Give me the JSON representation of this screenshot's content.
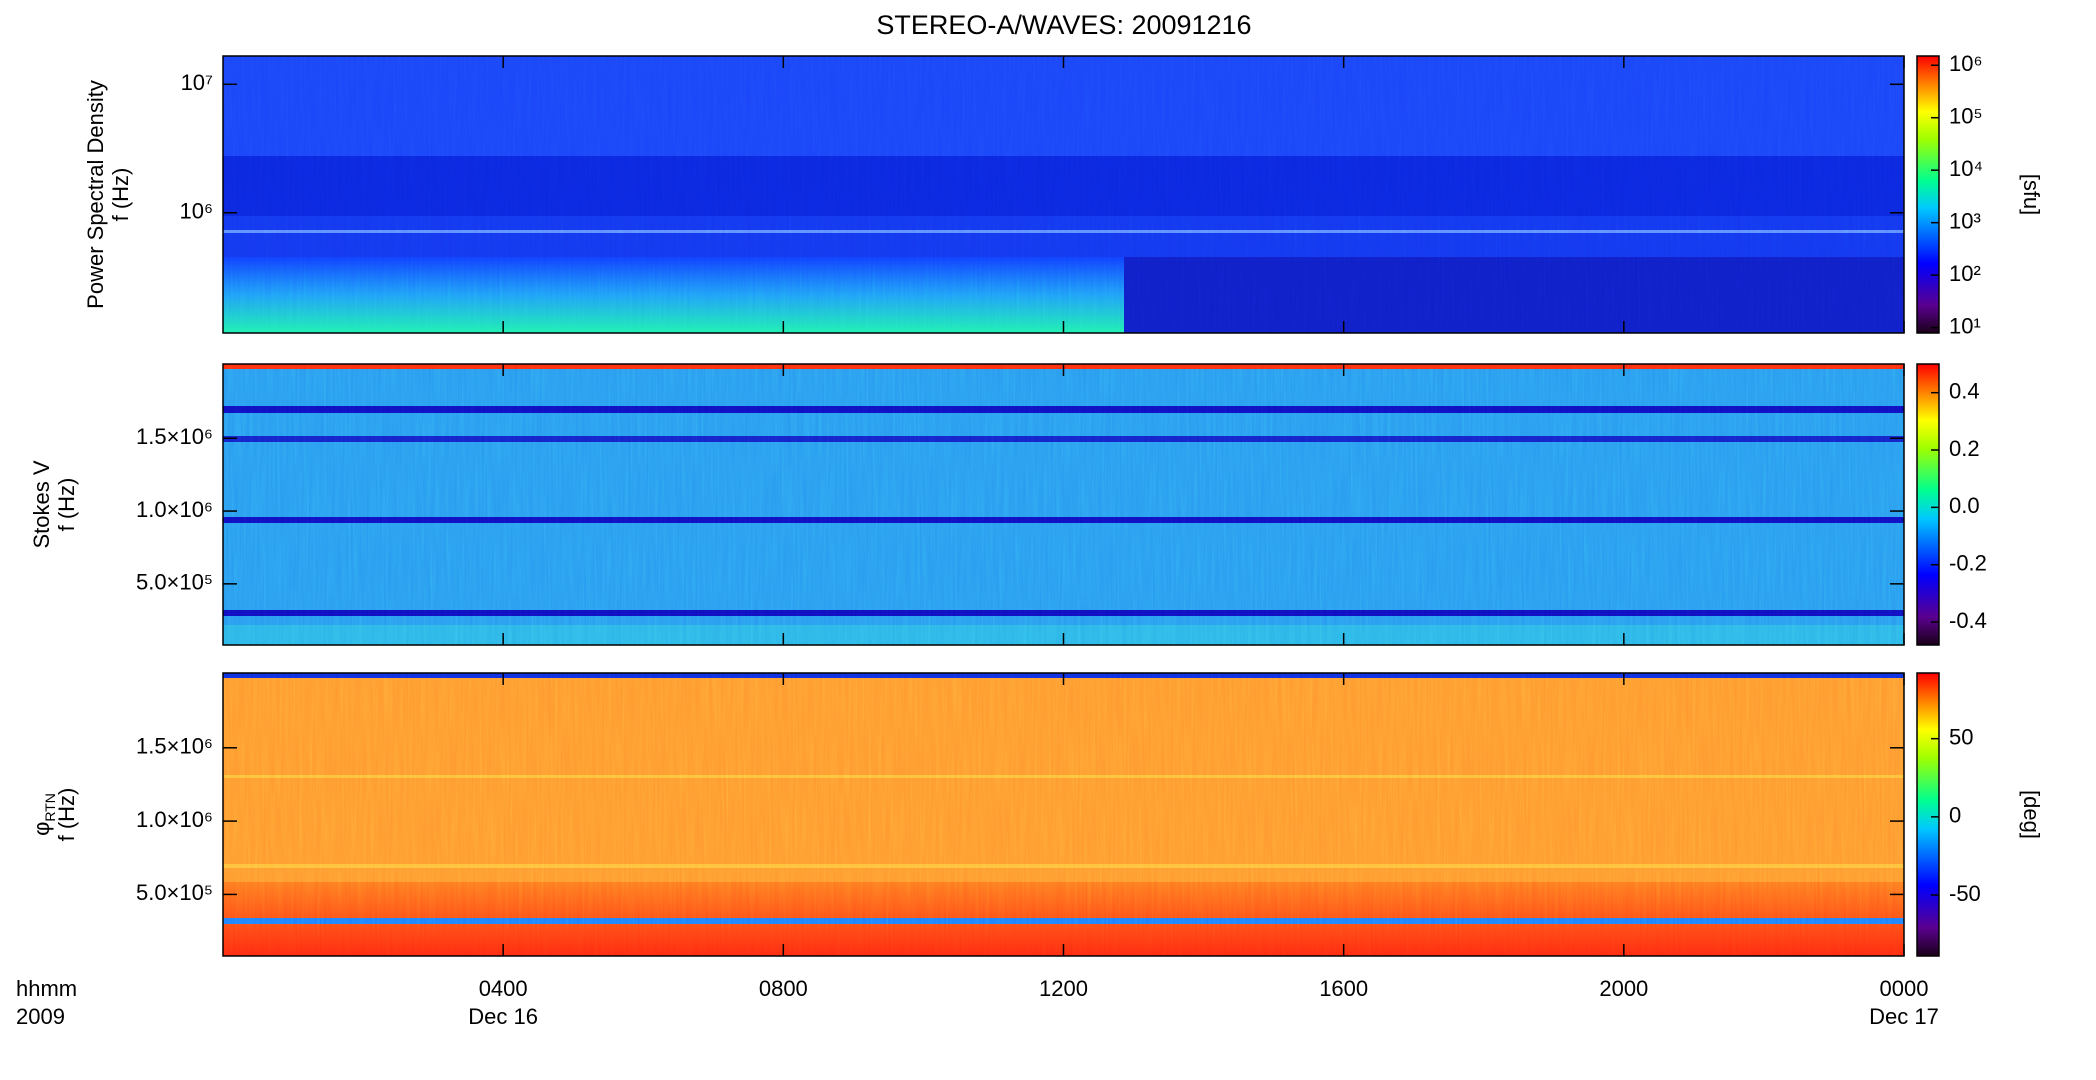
{
  "chart_data": [
    {
      "type": "spectrogram",
      "title": "STEREO-A/WAVES: 20091216",
      "ylabel": [
        "Power Spectral Density",
        "f (Hz)"
      ],
      "yscale": "log",
      "ylim": [
        116000,
        16600000
      ],
      "yticks": [
        {
          "value": 1000000,
          "label": "10⁶"
        },
        {
          "value": 10000000,
          "label": "10⁷"
        }
      ],
      "cscale": "log",
      "clim": [
        7.9,
        1500000
      ],
      "cticks": [
        {
          "value": 10,
          "label": "10¹"
        },
        {
          "value": 100,
          "label": "10²"
        },
        {
          "value": 1000,
          "label": "10³"
        },
        {
          "value": 10000,
          "label": "10⁴"
        },
        {
          "value": 100000,
          "label": "10⁵"
        },
        {
          "value": 1000000,
          "label": "10⁶"
        }
      ],
      "clabel": "[sfu]"
    },
    {
      "type": "spectrogram",
      "ylabel": [
        "Stokes V",
        "f (Hz)"
      ],
      "yscale": "linear",
      "ylim": [
        80000,
        2010000
      ],
      "yticks": [
        {
          "value": 500000,
          "label": "5.0×10⁵"
        },
        {
          "value": 1000000,
          "label": "1.0×10⁶"
        },
        {
          "value": 1500000,
          "label": "1.5×10⁶"
        }
      ],
      "cscale": "linear",
      "clim": [
        -0.48,
        0.5
      ],
      "cticks": [
        -0.4,
        -0.2,
        {
          "value": 0,
          "label": "0.0"
        },
        0.2,
        0.4
      ]
    },
    {
      "type": "spectrogram",
      "ylabel": [
        "φ",
        "f (Hz)"
      ],
      "ylabel_sub": "RTN",
      "yscale": "linear",
      "ylim": [
        80000,
        2010000
      ],
      "yticks": [
        {
          "value": 500000,
          "label": "5.0×10⁵"
        },
        {
          "value": 1000000,
          "label": "1.0×10⁶"
        },
        {
          "value": 1500000,
          "label": "1.5×10⁶"
        }
      ],
      "cscale": "linear",
      "clim": [
        -89,
        92
      ],
      "cticks": [
        -50,
        0,
        50
      ],
      "clabel": "[deg]",
      "xlabel": "hhmm",
      "xlabel2": "2009",
      "xlim": [
        0,
        24
      ],
      "xticks": [
        {
          "value": 4,
          "label": "0400"
        },
        {
          "value": 8,
          "label": "0800"
        },
        {
          "value": 12,
          "label": "1200"
        },
        {
          "value": 16,
          "label": "1600"
        },
        {
          "value": 20,
          "label": "2000"
        },
        {
          "value": 24,
          "label": "0000"
        }
      ],
      "xdates": [
        {
          "value": 4,
          "label": "Dec 16"
        },
        {
          "value": 24,
          "label": "Dec 17"
        }
      ]
    }
  ]
}
